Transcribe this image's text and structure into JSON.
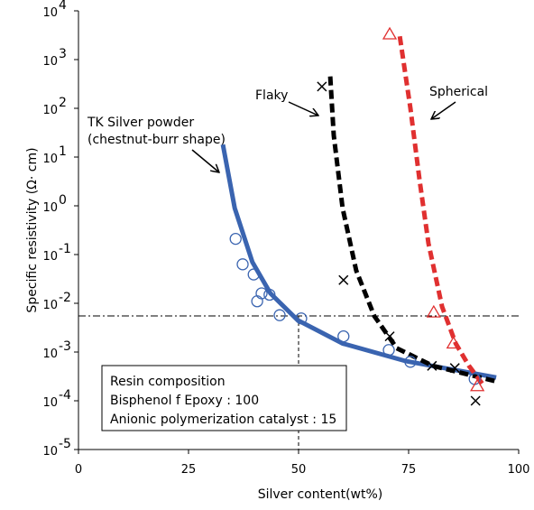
{
  "chart_data": {
    "type": "scatter",
    "x_label": "Silver content(wt%)",
    "y_label": "Specific resistivity (Ω· cm)",
    "log_y": true,
    "xlim": [
      0,
      100
    ],
    "xticks": [
      0,
      25,
      50,
      75,
      100
    ],
    "ylim": [
      1e-05,
      10000
    ],
    "yticks": [
      {
        "value": 1e-05,
        "label": "10",
        "exponent": "-5"
      },
      {
        "value": 0.0001,
        "label": "10",
        "exponent": "-4"
      },
      {
        "value": 0.001,
        "label": "10",
        "exponent": "-3"
      },
      {
        "value": 0.01,
        "label": "10",
        "exponent": "-2"
      },
      {
        "value": 0.1,
        "label": "10",
        "exponent": "-1"
      },
      {
        "value": 1,
        "label": "10",
        "exponent": "0"
      },
      {
        "value": 10,
        "label": "10",
        "exponent": "1"
      },
      {
        "value": 100,
        "label": "10",
        "exponent": "2"
      },
      {
        "value": 1000,
        "label": "10",
        "exponent": "3"
      },
      {
        "value": 10000,
        "label": "10",
        "exponent": "4"
      }
    ],
    "series": [
      {
        "marker": "circle",
        "color": "#3a64b0",
        "x": [
          35.7,
          37.3,
          39.8,
          40.6,
          41.6,
          43.4,
          45.7,
          50.6,
          60.2,
          70.5,
          75.4,
          90
        ],
        "values": [
          0.21,
          0.063,
          0.039,
          0.011,
          0.016,
          0.015,
          0.0057,
          0.0049,
          0.0021,
          0.0011,
          0.00063,
          0.00028
        ]
      },
      {
        "marker": "cross",
        "color": "#000000",
        "x": [
          55.3,
          60.2,
          70.7,
          80.3,
          85.5,
          90.2
        ],
        "values": [
          280,
          0.03,
          0.0021,
          0.00052,
          0.00047,
          0.0001
        ]
      },
      {
        "marker": "triangle",
        "color": "#e03030",
        "x": [
          70.7,
          80.7,
          85.2,
          90.6
        ],
        "values": [
          3300,
          0.0065,
          0.0015,
          0.0002
        ]
      }
    ],
    "curves": [
      {
        "name": "TK Silver powder",
        "name2": "(chestnut-burr shape)",
        "color": "#3a64b0",
        "dash": false,
        "x": [
          32.8,
          35.5,
          39.5,
          43.6,
          49.8,
          60,
          74.4,
          94.9
        ],
        "values": [
          18,
          0.9,
          0.07,
          0.016,
          0.0045,
          0.0015,
          0.00065,
          0.0003
        ]
      },
      {
        "name": "Flaky",
        "color": "#000000",
        "dash": true,
        "x": [
          57.2,
          58,
          60,
          63.1,
          67.2,
          72.3,
          80.5,
          94.9
        ],
        "values": [
          450,
          28,
          0.9,
          0.047,
          0.0055,
          0.0012,
          0.00052,
          0.00025
        ]
      },
      {
        "name": "Spherical",
        "color": "#e03030",
        "dash": true,
        "x": [
          73,
          75.4,
          77.5,
          79.5,
          82.6,
          85.7,
          88.7,
          91.8
        ],
        "values": [
          3000,
          100,
          3.3,
          0.17,
          0.0085,
          0.0015,
          0.00052,
          0.00022
        ]
      }
    ],
    "reference_lines": {
      "y": 0.0055,
      "x": 50
    },
    "annotation_box": [
      "Resin composition",
      "Bisphenol f Epoxy : 100",
      "Anionic polymerization catalyst : 15"
    ]
  }
}
